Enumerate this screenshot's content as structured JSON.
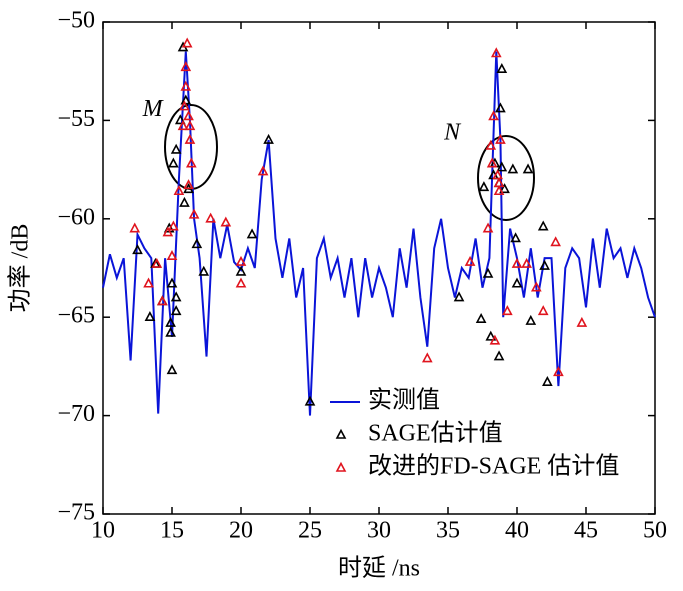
{
  "chart_data": {
    "type": "line",
    "xlabel": "时延 /ns",
    "ylabel": "功率 /dB",
    "xlim": [
      10,
      50
    ],
    "xticks": [
      10,
      15,
      20,
      25,
      30,
      35,
      40,
      45,
      50
    ],
    "ylim": [
      -75,
      -50
    ],
    "yticks": [
      {
        "value": -75,
        "label": "−75"
      },
      {
        "value": -70,
        "label": "−70"
      },
      {
        "value": -65,
        "label": "−65"
      },
      {
        "value": -60,
        "label": "−60"
      },
      {
        "value": -55,
        "label": "−55"
      },
      {
        "value": -50,
        "label": "−50"
      }
    ],
    "legend": "lower right",
    "annotations": [
      {
        "text": "M",
        "x": 13.6,
        "y": -54.5
      },
      {
        "text": "N",
        "x": 35.3,
        "y": -55.7
      }
    ],
    "series": [
      {
        "name": "实测值",
        "type": "line",
        "color": "#0a14d8",
        "x": [
          10,
          10.5,
          11,
          11.5,
          12,
          12.5,
          13,
          13.5,
          14,
          14.5,
          15,
          15.5,
          16,
          16.3,
          16.6,
          17,
          17.5,
          18,
          18.5,
          19,
          19.5,
          20,
          20.5,
          21,
          21.5,
          22,
          22.5,
          23,
          23.5,
          24,
          24.5,
          25,
          25.5,
          26,
          26.5,
          27,
          27.5,
          28,
          28.5,
          29,
          29.5,
          30,
          30.5,
          31,
          31.5,
          32,
          32.5,
          33,
          33.5,
          34,
          34.5,
          35,
          35.5,
          36,
          36.5,
          37,
          37.5,
          38,
          38.5,
          38.8,
          39,
          39.5,
          40,
          40.5,
          41,
          41.5,
          42,
          42.5,
          43,
          43.5,
          44,
          44.5,
          45,
          45.5,
          46,
          46.5,
          47,
          47.5,
          48,
          48.5,
          49,
          49.5,
          50
        ],
        "values": [
          -63.5,
          -61.8,
          -63,
          -62,
          -67.2,
          -60.8,
          -61.5,
          -62,
          -69.9,
          -62,
          -66,
          -58,
          -51.5,
          -55,
          -60,
          -62,
          -67,
          -60,
          -62,
          -60.3,
          -62.2,
          -62.6,
          -61.5,
          -62.5,
          -58,
          -56,
          -61,
          -63,
          -61,
          -64,
          -62.5,
          -70,
          -62,
          -61,
          -63,
          -62,
          -64,
          -62,
          -65,
          -62,
          -64,
          -62.5,
          -63.5,
          -65,
          -61.5,
          -63.5,
          -60.5,
          -64,
          -66.5,
          -61.5,
          -60,
          -62.5,
          -64,
          -62.5,
          -63,
          -61,
          -63.5,
          -62,
          -51.5,
          -56,
          -65,
          -60.5,
          -62,
          -64,
          -61.5,
          -64,
          -62,
          -62,
          -68.5,
          -62.5,
          -61.5,
          -62,
          -64.5,
          -61,
          -63.5,
          -60.5,
          -62,
          -61.5,
          -63,
          -61.5,
          -62.5,
          -64,
          -65
        ]
      },
      {
        "name": "SAGE估计值",
        "type": "scatter",
        "color": "#000000",
        "x": [
          12.5,
          13.4,
          13.8,
          14.3,
          14.8,
          14.9,
          14.9,
          15,
          15,
          15.3,
          15.3,
          15.1,
          15.3,
          15.6,
          15.8,
          16,
          15.9,
          16.2,
          16.8,
          17.3,
          20,
          20.8,
          22,
          25,
          35.8,
          37.4,
          37.6,
          37.9,
          38.1,
          38.3,
          38.4,
          38.7,
          38.9,
          38.8,
          38.9,
          39.1,
          39.7,
          39.9,
          40,
          40.8,
          41,
          41.9,
          42,
          42.2,
          38.7
        ],
        "values": [
          -61.6,
          -65,
          -62.3,
          -64.2,
          -60.5,
          -65.3,
          -65.8,
          -67.7,
          -63.3,
          -64,
          -64.7,
          -57.2,
          -56.5,
          -55,
          -51.3,
          -54,
          -59.2,
          -58.5,
          -61.3,
          -62.7,
          -62.7,
          -60.8,
          -56,
          -69.3,
          -64,
          -65.1,
          -58.4,
          -62.8,
          -66,
          -57.8,
          -57.2,
          -58.2,
          -57.4,
          -54.4,
          -52.4,
          -58.5,
          -57.5,
          -61,
          -63.3,
          -57.5,
          -65.2,
          -60.4,
          -62.4,
          -68.3,
          -67
        ]
      },
      {
        "name": "改进的FD-SAGE 估计值",
        "type": "scatter",
        "color": "#e0141e",
        "x": [
          12.3,
          13.3,
          13.9,
          14.3,
          14.7,
          15,
          15.1,
          15.5,
          15.8,
          15.9,
          16,
          16,
          16.1,
          16.2,
          16.3,
          16.3,
          16.4,
          16.2,
          16.6,
          17.8,
          18.9,
          20,
          20,
          21.6,
          33.5,
          36.6,
          37.9,
          38.1,
          38.2,
          38.3,
          38.5,
          38.6,
          38.7,
          38.4,
          38.7,
          38.8,
          39.3,
          40,
          40.7,
          41.4,
          41.9,
          42.8,
          43,
          44.7
        ],
        "values": [
          -60.5,
          -63.3,
          -62.3,
          -64.2,
          -60.7,
          -61.9,
          -60.4,
          -58.6,
          -55.3,
          -54.3,
          -53.3,
          -52.3,
          -51.1,
          -54.8,
          -55.3,
          -56,
          -57.2,
          -58.3,
          -59.8,
          -60,
          -60.2,
          -62.2,
          -63.3,
          -57.6,
          -67.1,
          -62.2,
          -60.5,
          -56.3,
          -57.2,
          -54.8,
          -51.6,
          -57.8,
          -58.6,
          -66.2,
          -58.2,
          -56,
          -64.7,
          -62.3,
          -62.3,
          -63.5,
          -64.7,
          -61.2,
          -67.8,
          -65.3
        ]
      }
    ]
  }
}
